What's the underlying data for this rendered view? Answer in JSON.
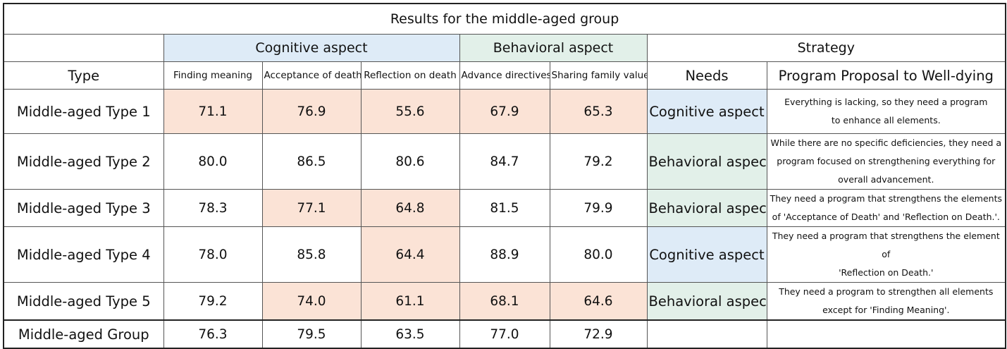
{
  "title": "Results for the middle-aged group",
  "groups": {
    "cognitive": "Cognitive aspect",
    "behavioral": "Behavioral aspect",
    "strategy": "Strategy"
  },
  "columns": {
    "type": "Type",
    "finding_meaning": "Finding meaning",
    "acceptance_of_death": "Acceptance of death",
    "reflection_on_death": "Reflection on death",
    "advance_directives": "Advance directives",
    "sharing_family_values": "Sharing family values",
    "needs": "Needs",
    "proposal": "Program Proposal to Well-dying"
  },
  "colors": {
    "highlight": "#fbe3d6",
    "cognitive": "#deebf7",
    "behavioral": "#e2f0e9"
  },
  "rows": [
    {
      "type": "Middle-aged Type 1",
      "values": [
        "71.1",
        "76.9",
        "55.6",
        "67.9",
        "65.3"
      ],
      "highlighted": [
        true,
        true,
        true,
        true,
        true
      ],
      "needs": "Cognitive aspect",
      "needs_kind": "cognitive",
      "proposal": [
        "Everything is lacking, so they need a program",
        "to enhance all elements."
      ]
    },
    {
      "type": "Middle-aged Type 2",
      "values": [
        "80.0",
        "86.5",
        "80.6",
        "84.7",
        "79.2"
      ],
      "highlighted": [
        false,
        false,
        false,
        false,
        false
      ],
      "needs": "Behavioral aspect",
      "needs_kind": "behavioral",
      "proposal": [
        "While there are no specific deficiencies, they need a",
        "program focused on strengthening everything for",
        "overall advancement."
      ]
    },
    {
      "type": "Middle-aged Type 3",
      "values": [
        "78.3",
        "77.1",
        "64.8",
        "81.5",
        "79.9"
      ],
      "highlighted": [
        false,
        true,
        true,
        false,
        false
      ],
      "needs": "Behavioral aspect",
      "needs_kind": "behavioral",
      "proposal": [
        "They need a program that strengthens the elements",
        "of 'Acceptance of Death' and 'Reflection on Death.'."
      ]
    },
    {
      "type": "Middle-aged Type 4",
      "values": [
        "78.0",
        "85.8",
        "64.4",
        "88.9",
        "80.0"
      ],
      "highlighted": [
        false,
        false,
        true,
        false,
        false
      ],
      "needs": "Cognitive aspect",
      "needs_kind": "cognitive",
      "proposal": [
        "They need a program that strengthens the element of",
        "'Reflection on Death.'"
      ]
    },
    {
      "type": "Middle-aged Type 5",
      "values": [
        "79.2",
        "74.0",
        "61.1",
        "68.1",
        "64.6"
      ],
      "highlighted": [
        false,
        true,
        true,
        true,
        true
      ],
      "needs": "Behavioral aspect",
      "needs_kind": "behavioral",
      "proposal": [
        "They need a program to strengthen all elements",
        "except for 'Finding Meaning'."
      ]
    }
  ],
  "total": {
    "type": "Middle-aged Group",
    "values": [
      "76.3",
      "79.5",
      "63.5",
      "77.0",
      "72.9"
    ],
    "needs": "",
    "proposal": ""
  }
}
